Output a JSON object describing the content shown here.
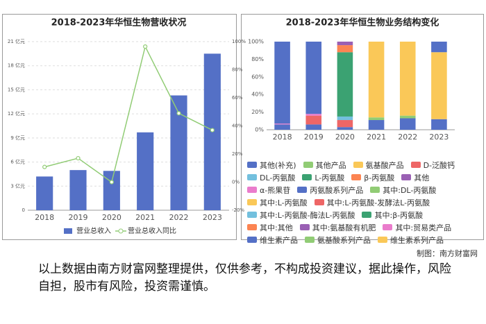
{
  "chart_data": [
    {
      "type": "bar",
      "title": "2018-2023年华恒生物营收状况",
      "categories": [
        "2018",
        "2019",
        "2020",
        "2021",
        "2022",
        "2023"
      ],
      "series": [
        {
          "name": "营业总收入",
          "kind": "bar",
          "color": "#5470c6",
          "values": [
            4.2,
            5.0,
            4.9,
            9.7,
            14.3,
            19.5
          ]
        },
        {
          "name": "营业总收入同比",
          "kind": "line",
          "axis": "y2",
          "color": "#91cc75",
          "values": [
            10.8,
            17,
            0,
            96.5,
            49,
            37
          ]
        }
      ],
      "ylim": [
        0,
        21
      ],
      "yticks": [
        0,
        {
          "value": 3,
          "label": "3 亿元"
        },
        {
          "value": 6,
          "label": "6 亿元"
        },
        {
          "value": 9,
          "label": "9 亿元"
        },
        {
          "value": 12,
          "label": "12 亿元"
        },
        {
          "value": 15,
          "label": "15 亿元"
        },
        {
          "value": 18,
          "label": "18 亿元"
        },
        {
          "value": 21,
          "label": "21 亿元"
        }
      ],
      "y2lim": [
        -20,
        100
      ],
      "y2ticks": [
        {
          "value": -20,
          "label": "-20%"
        },
        {
          "value": 0,
          "label": "0%"
        },
        {
          "value": 20,
          "label": "20%"
        },
        {
          "value": 40,
          "label": "40%"
        },
        {
          "value": 60,
          "label": "60%"
        },
        {
          "value": 80,
          "label": "80%"
        },
        {
          "value": 100,
          "label": "100%"
        }
      ],
      "grid": true
    },
    {
      "type": "bar",
      "title": "2018-2023年华恒生物业务结构变化",
      "stacked": true,
      "categories": [
        "2018",
        "2019",
        "2020",
        "2021",
        "2022",
        "2023"
      ],
      "series": [
        {
          "name": "其他(补充)",
          "color": "#5470c6",
          "values": [
            6,
            6,
            3,
            11,
            13,
            12
          ]
        },
        {
          "name": "其他产品",
          "color": "#91cc75",
          "values": [
            null,
            null,
            null,
            3,
            3,
            null
          ]
        },
        {
          "name": "氨基酸产品",
          "color": "#fac858",
          "values": [
            null,
            null,
            null,
            86,
            84,
            76
          ]
        },
        {
          "name": "D-泛酸钙",
          "color": "#ee6666",
          "values": [
            null,
            10,
            8,
            null,
            null,
            null
          ]
        },
        {
          "name": "DL-丙氨酸",
          "color": "#73c0de",
          "values": [
            null,
            null,
            4,
            null,
            null,
            null
          ]
        },
        {
          "name": "L-丙氨酸",
          "color": "#3ba272",
          "values": [
            null,
            null,
            73,
            null,
            null,
            null
          ]
        },
        {
          "name": "β-丙氨酸",
          "color": "#fc8452",
          "values": [
            null,
            null,
            8,
            null,
            null,
            null
          ]
        },
        {
          "name": "其他",
          "color": "#9a60b4",
          "values": [
            null,
            null,
            4,
            null,
            null,
            null
          ]
        },
        {
          "name": "α-熊果苷",
          "color": "#ea7ccc",
          "values": [
            1,
            2,
            null,
            null,
            null,
            null
          ]
        },
        {
          "name": "丙氨酸系列产品",
          "color": "#5470c6",
          "values": [
            93,
            82,
            null,
            null,
            null,
            null
          ]
        },
        {
          "name": "其中:DL-丙氨酸",
          "color": "#91cc75",
          "values": [
            null,
            null,
            null,
            null,
            null,
            null
          ]
        },
        {
          "name": "其中:L-丙氨酸",
          "color": "#fac858",
          "values": [
            null,
            null,
            null,
            null,
            null,
            null
          ]
        },
        {
          "name": "其中:L-丙氨酸-发酵法L-丙氨酸",
          "color": "#ee6666",
          "values": [
            null,
            null,
            null,
            null,
            null,
            null
          ]
        },
        {
          "name": "其中:L-丙氨酸-酶法L-丙氨酸",
          "color": "#73c0de",
          "values": [
            null,
            null,
            null,
            null,
            null,
            null
          ]
        },
        {
          "name": "其中:β-丙氨酸",
          "color": "#3ba272",
          "values": [
            null,
            null,
            null,
            null,
            null,
            null
          ]
        },
        {
          "name": "其中:其他",
          "color": "#fc8452",
          "values": [
            null,
            null,
            null,
            null,
            null,
            null
          ]
        },
        {
          "name": "其中:氨基酸有机肥",
          "color": "#9a60b4",
          "values": [
            null,
            null,
            null,
            null,
            null,
            null
          ]
        },
        {
          "name": "其中:贸易类产品",
          "color": "#ea7ccc",
          "values": [
            null,
            null,
            null,
            null,
            null,
            null
          ]
        },
        {
          "name": "维生素产品",
          "color": "#5470c6",
          "values": [
            null,
            null,
            null,
            null,
            null,
            12
          ]
        },
        {
          "name": "氨基酸系列产品",
          "color": "#91cc75",
          "values": [
            null,
            null,
            null,
            null,
            null,
            null
          ]
        },
        {
          "name": "维生素系列产品",
          "color": "#fac858",
          "values": [
            null,
            null,
            null,
            null,
            null,
            null
          ]
        }
      ],
      "ylim": [
        0,
        100
      ],
      "yticks": [
        {
          "value": 0,
          "label": "0%"
        },
        {
          "value": 20,
          "label": "20%"
        },
        {
          "value": 40,
          "label": "40%"
        },
        {
          "value": 60,
          "label": "60%"
        },
        {
          "value": 80,
          "label": "80%"
        },
        {
          "value": 100,
          "label": "100%"
        }
      ],
      "grid": false
    }
  ],
  "credit": "制图：南方财富网",
  "disclaimer": "以上数据由南方财富网整理提供，仅供参考，不构成投资建议，据此操作，风险自担，股市有风险，投资需谨慎。"
}
